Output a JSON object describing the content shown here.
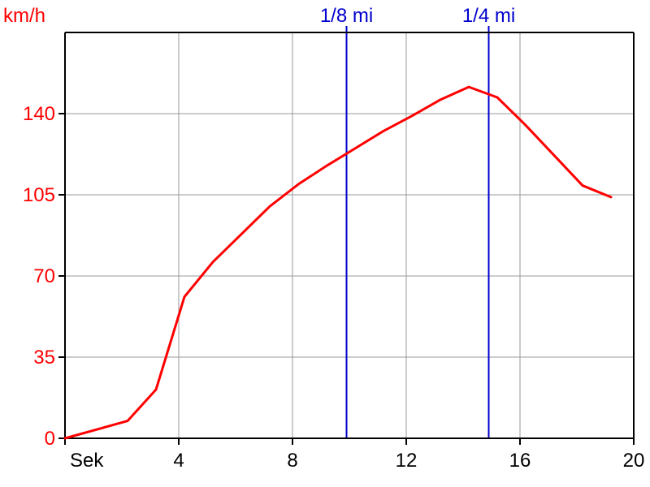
{
  "chart_data": {
    "type": "line",
    "ylabel": "km/h",
    "xlabel": "Sek",
    "xlim": [
      0,
      20
    ],
    "ylim": [
      0,
      175
    ],
    "x_ticks": [
      4,
      8,
      12,
      16,
      20
    ],
    "y_ticks": [
      0,
      35,
      70,
      105,
      140
    ],
    "grid": true,
    "series": [
      {
        "color": "#ff0000",
        "points": [
          {
            "x": 0.0,
            "y": 0
          },
          {
            "x": 2.2,
            "y": 7.5
          },
          {
            "x": 3.2,
            "y": 21
          },
          {
            "x": 4.2,
            "y": 61
          },
          {
            "x": 5.2,
            "y": 76
          },
          {
            "x": 6.2,
            "y": 88
          },
          {
            "x": 7.2,
            "y": 100
          },
          {
            "x": 8.2,
            "y": 109.5
          },
          {
            "x": 9.2,
            "y": 117.5
          },
          {
            "x": 10.2,
            "y": 125
          },
          {
            "x": 11.2,
            "y": 132.5
          },
          {
            "x": 12.2,
            "y": 139
          },
          {
            "x": 13.2,
            "y": 146
          },
          {
            "x": 14.2,
            "y": 151.5
          },
          {
            "x": 15.2,
            "y": 147
          },
          {
            "x": 16.2,
            "y": 135
          },
          {
            "x": 17.2,
            "y": 122
          },
          {
            "x": 18.2,
            "y": 109
          },
          {
            "x": 19.2,
            "y": 104
          }
        ]
      }
    ],
    "markers": [
      {
        "label": "1/8 mi",
        "x": 9.9,
        "color": "#0000cc"
      },
      {
        "label": "1/4 mi",
        "x": 14.9,
        "color": "#0000cc"
      }
    ]
  },
  "colors": {
    "axis": "#000000",
    "grid": "#999999",
    "y_text": "#ff0000",
    "x_text": "#000000"
  }
}
